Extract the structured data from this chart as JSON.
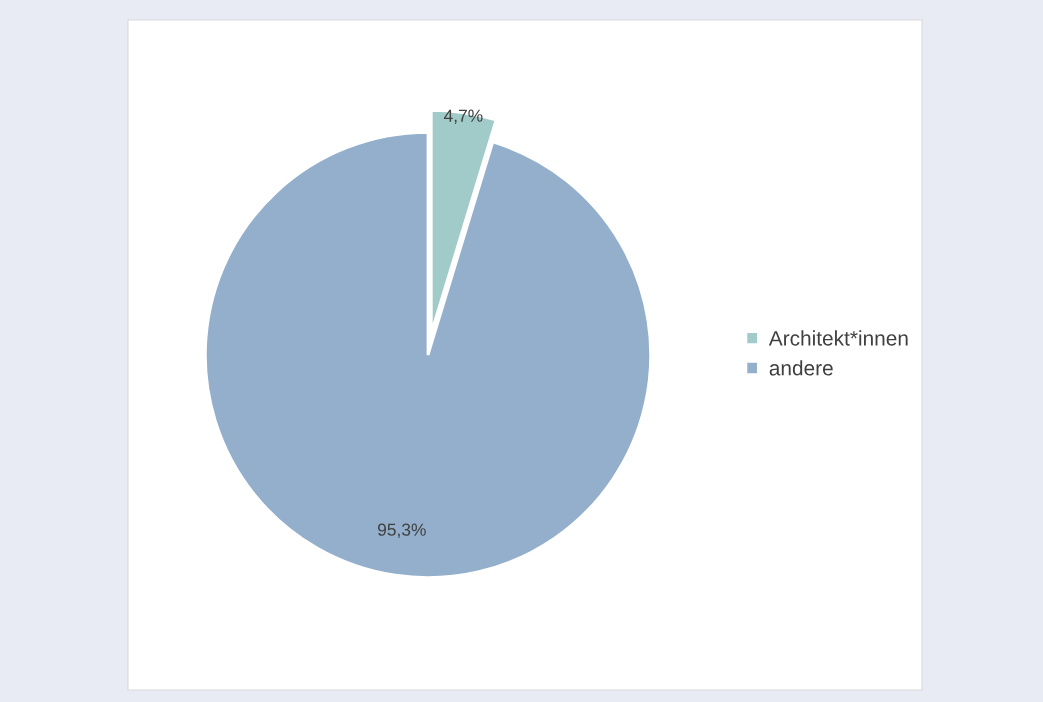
{
  "chart_data": {
    "type": "pie",
    "categories": [
      "Architekt*innen",
      "andere"
    ],
    "values": [
      4.7,
      95.3
    ],
    "colors": [
      "#a1cbc9",
      "#93afcc"
    ],
    "value_labels": [
      "4,7%",
      "95,3%"
    ],
    "legend": "right"
  }
}
